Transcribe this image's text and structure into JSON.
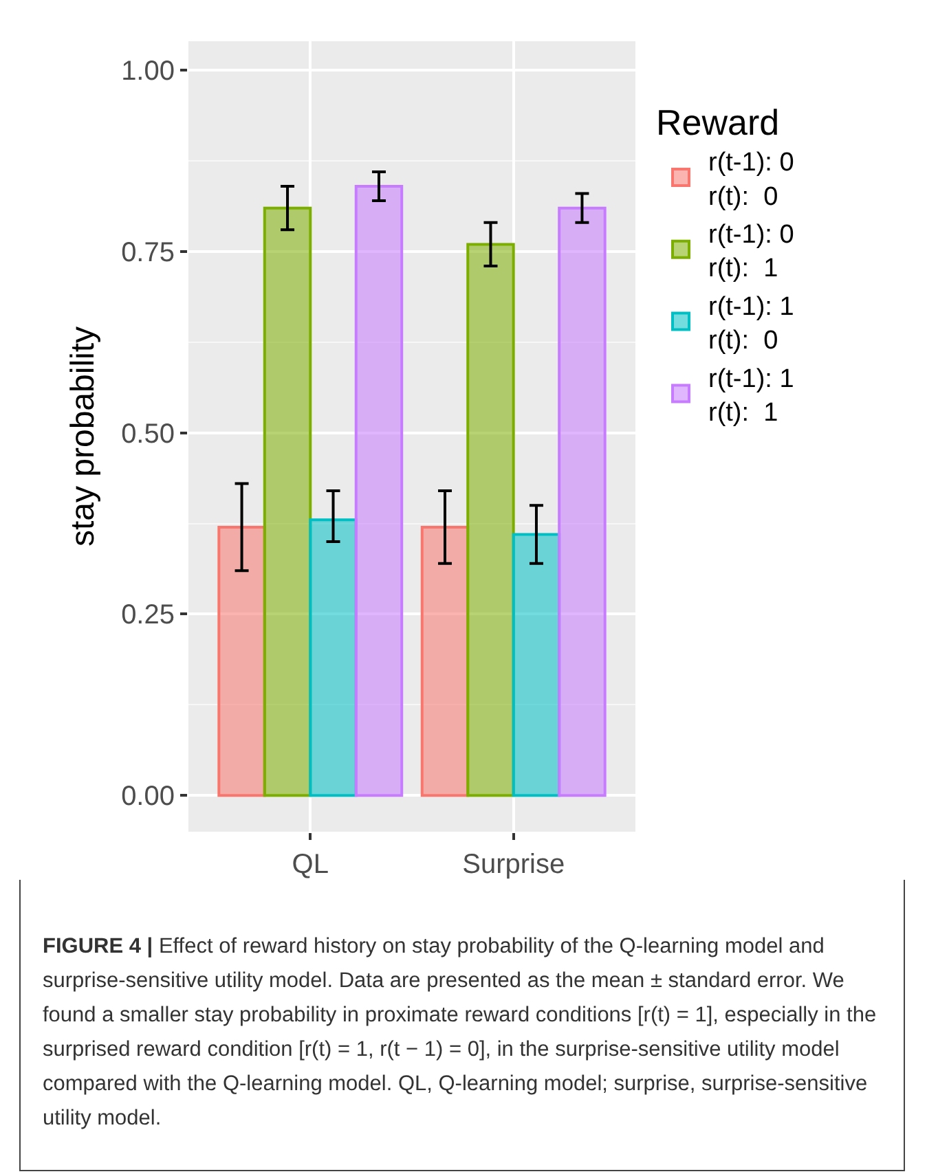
{
  "chart_data": {
    "type": "bar",
    "ylabel": "stay probability",
    "legend_title": "Reward",
    "categories": [
      "QL",
      "Surprise"
    ],
    "series": [
      {
        "name": "r(t-1): 0\nr(t):  0",
        "color": "#f8766d",
        "values": [
          0.37,
          0.37
        ],
        "errors": [
          [
            0.31,
            0.43
          ],
          [
            0.32,
            0.42
          ]
        ]
      },
      {
        "name": "r(t-1): 0\nr(t):  1",
        "color": "#7cae00",
        "values": [
          0.81,
          0.76
        ],
        "errors": [
          [
            0.78,
            0.84
          ],
          [
            0.73,
            0.79
          ]
        ]
      },
      {
        "name": "r(t-1): 1\nr(t):  0",
        "color": "#00bfc4",
        "values": [
          0.38,
          0.36
        ],
        "errors": [
          [
            0.35,
            0.42
          ],
          [
            0.32,
            0.4
          ]
        ]
      },
      {
        "name": "r(t-1): 1\nr(t):  1",
        "color": "#c77cff",
        "values": [
          0.84,
          0.81
        ],
        "errors": [
          [
            0.82,
            0.86
          ],
          [
            0.79,
            0.83
          ]
        ]
      }
    ],
    "ylim": [
      -0.05,
      1.04
    ],
    "yticks": [
      {
        "value": 0,
        "label": "0.00"
      },
      {
        "value": 0.25,
        "label": "0.25"
      },
      {
        "value": 0.5,
        "label": "0.50"
      },
      {
        "value": 0.75,
        "label": "0.75"
      },
      {
        "value": 1,
        "label": "1.00"
      }
    ],
    "grid": true,
    "legend": "right",
    "annotations": [
      "**FIGURE 4 |** Effect of reward history on stay probability of the Q-learning model and surprise-sensitive utility model. Data are presented as the mean ± standard error. We found a smaller stay probability in proximate reward conditions [r(t) = 1], especially in the surprised reward condition [r(t) = 1, r(t − 1) = 0], in the surprise-sensitive utility model compared with the Q-learning model. QL, Q-learning model; surprise, surprise-sensitive utility model."
    ]
  }
}
